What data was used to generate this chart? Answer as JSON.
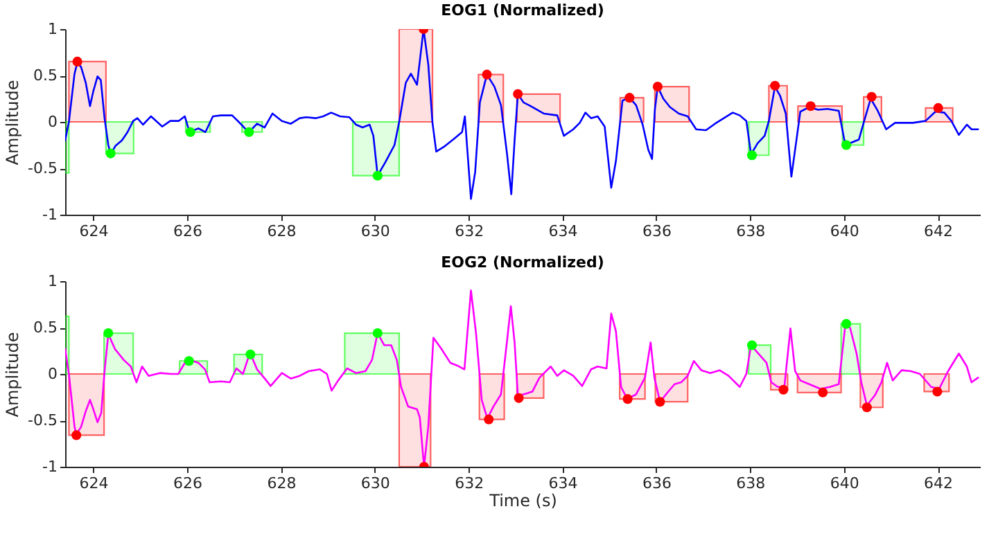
{
  "chart_data": [
    {
      "type": "line",
      "title": "EOG1 (Normalized)",
      "ylabel": "Amplitude",
      "xlim": [
        623.4,
        642.9
      ],
      "xticks": [
        624,
        626,
        628,
        630,
        632,
        634,
        636,
        638,
        640,
        642
      ],
      "ylim": [
        -1,
        1
      ],
      "yticks": [
        -1,
        -0.5,
        0,
        0.5,
        1
      ],
      "grid": false,
      "series": [
        {
          "type": "area",
          "color": "#ff0000",
          "x": [
            623.48,
            624.27
          ],
          "values": [
            0.65,
            0.65
          ]
        },
        {
          "type": "area",
          "color": "#ff0000",
          "x": [
            630.52,
            631.23
          ],
          "values": [
            1,
            1
          ]
        },
        {
          "type": "area",
          "color": "#ff0000",
          "x": [
            632.21,
            632.74
          ],
          "values": [
            0.51,
            0.51
          ]
        },
        {
          "type": "area",
          "color": "#ff0000",
          "x": [
            633.03,
            633.95
          ],
          "values": [
            0.3,
            0.3
          ]
        },
        {
          "type": "area",
          "color": "#ff0000",
          "x": [
            635.23,
            635.73
          ],
          "values": [
            0.26,
            0.26
          ]
        },
        {
          "type": "area",
          "color": "#ff0000",
          "x": [
            635.97,
            636.7
          ],
          "values": [
            0.38,
            0.38
          ]
        },
        {
          "type": "area",
          "color": "#ff0000",
          "x": [
            638.4,
            638.79
          ],
          "values": [
            0.39,
            0.39
          ]
        },
        {
          "type": "area",
          "color": "#ff0000",
          "x": [
            639.02,
            639.96
          ],
          "values": [
            0.17,
            0.17
          ]
        },
        {
          "type": "area",
          "color": "#ff0000",
          "x": [
            640.42,
            640.8
          ],
          "values": [
            0.27,
            0.27
          ]
        },
        {
          "type": "area",
          "color": "#ff0000",
          "x": [
            641.74,
            642.32
          ],
          "values": [
            0.15,
            0.15
          ]
        },
        {
          "type": "area",
          "color": "#00ff00",
          "x": [
            623.4,
            623.48
          ],
          "values": [
            -0.55,
            -0.55
          ]
        },
        {
          "type": "area",
          "color": "#00ff00",
          "x": [
            624.27,
            624.86
          ],
          "values": [
            -0.34,
            -0.34
          ]
        },
        {
          "type": "area",
          "color": "#00ff00",
          "x": [
            625.97,
            626.49
          ],
          "values": [
            -0.11,
            -0.11
          ]
        },
        {
          "type": "area",
          "color": "#00ff00",
          "x": [
            627.17,
            627.6
          ],
          "values": [
            -0.11,
            -0.11
          ]
        },
        {
          "type": "area",
          "color": "#00ff00",
          "x": [
            629.53,
            630.52
          ],
          "values": [
            -0.58,
            -0.58
          ]
        },
        {
          "type": "area",
          "color": "#00ff00",
          "x": [
            637.97,
            638.4
          ],
          "values": [
            -0.36,
            -0.36
          ]
        },
        {
          "type": "area",
          "color": "#00ff00",
          "x": [
            639.97,
            640.42
          ],
          "values": [
            -0.25,
            -0.25
          ]
        },
        {
          "type": "line",
          "color": "#0000ff",
          "x": [
            623.4,
            623.48,
            623.6,
            623.66,
            623.74,
            623.84,
            623.93,
            624.0,
            624.09,
            624.16,
            624.24,
            624.32,
            624.37,
            624.47,
            624.61,
            624.73,
            624.85,
            624.94,
            625.06,
            625.23,
            625.47,
            625.64,
            625.82,
            625.95,
            626.05,
            626.24,
            626.39,
            626.55,
            626.72,
            626.96,
            627.1,
            627.25,
            627.32,
            627.49,
            627.65,
            627.82,
            628.02,
            628.21,
            628.4,
            628.54,
            628.74,
            628.9,
            629.07,
            629.26,
            629.46,
            629.6,
            629.74,
            629.89,
            629.97,
            630.06,
            630.22,
            630.42,
            630.52,
            630.66,
            630.77,
            630.9,
            631.04,
            631.14,
            631.23,
            631.31,
            631.47,
            631.67,
            631.86,
            631.92,
            632.05,
            632.14,
            632.24,
            632.39,
            632.55,
            632.69,
            632.82,
            632.91,
            632.98,
            633.05,
            633.17,
            633.36,
            633.6,
            633.89,
            634.03,
            634.23,
            634.37,
            634.49,
            634.61,
            634.75,
            634.9,
            635.04,
            635.14,
            635.28,
            635.43,
            635.57,
            635.71,
            635.83,
            635.91,
            635.97,
            636.03,
            636.15,
            636.29,
            636.48,
            636.67,
            636.85,
            637.06,
            637.25,
            637.44,
            637.63,
            637.78,
            637.92,
            638.02,
            638.16,
            638.31,
            638.4,
            638.53,
            638.64,
            638.76,
            638.88,
            639.0,
            639.07,
            639.26,
            639.45,
            639.65,
            639.89,
            640.01,
            640.13,
            640.32,
            640.42,
            640.57,
            640.71,
            640.9,
            641.09,
            641.28,
            641.47,
            641.74,
            641.95,
            642.14,
            642.29,
            642.45,
            642.62,
            642.72,
            642.86
          ],
          "values": [
            -0.2,
            0,
            0.52,
            0.64,
            0.59,
            0.42,
            0.17,
            0.33,
            0.49,
            0.45,
            0.04,
            -0.25,
            -0.35,
            -0.26,
            -0.2,
            -0.11,
            0.01,
            0.04,
            -0.03,
            0.06,
            -0.05,
            0.01,
            0.01,
            0.06,
            -0.11,
            -0.07,
            -0.11,
            0.06,
            0.07,
            0.07,
            0,
            -0.08,
            -0.11,
            -0.02,
            -0.06,
            0.09,
            0.01,
            -0.02,
            0.04,
            0.05,
            0.04,
            0.06,
            0.1,
            0.06,
            0.05,
            -0.03,
            -0.06,
            -0.03,
            -0.15,
            -0.58,
            -0.44,
            -0.25,
            0,
            0.42,
            0.52,
            0.4,
            1.0,
            0.62,
            -0.01,
            -0.32,
            -0.27,
            -0.19,
            -0.11,
            0.06,
            -0.83,
            -0.54,
            0.21,
            0.51,
            0.38,
            0.18,
            -0.35,
            -0.78,
            -0.2,
            0.3,
            0.21,
            0.16,
            0.09,
            0.07,
            -0.15,
            -0.08,
            -0.01,
            0.1,
            0.04,
            0.06,
            -0.05,
            -0.71,
            -0.42,
            0.23,
            0.26,
            0.18,
            -0.03,
            -0.3,
            -0.4,
            0.13,
            0.38,
            0.25,
            0.16,
            0.09,
            0.06,
            -0.08,
            -0.09,
            -0.02,
            0.04,
            0.1,
            0.07,
            0.01,
            -0.35,
            -0.23,
            -0.15,
            0.01,
            0.38,
            0.28,
            0.09,
            -0.59,
            -0.15,
            0.11,
            0.16,
            0.13,
            0.14,
            0.12,
            -0.2,
            -0.23,
            -0.19,
            -0.01,
            0.25,
            0.13,
            -0.08,
            -0.01,
            -0.01,
            -0.01,
            0.01,
            0.11,
            0.1,
            0.01,
            -0.14,
            -0.03,
            -0.08,
            -0.08
          ]
        },
        {
          "type": "scatter",
          "color": "#ff0000",
          "x": [
            623.66,
            631.04,
            632.39,
            633.05,
            635.43,
            636.03,
            638.53,
            639.29,
            640.59,
            642.01
          ],
          "values": [
            0.65,
            1,
            0.51,
            0.3,
            0.26,
            0.38,
            0.39,
            0.17,
            0.27,
            0.15
          ]
        },
        {
          "type": "scatter",
          "color": "#00ff00",
          "x": [
            624.37,
            626.07,
            627.32,
            630.06,
            638.04,
            640.05
          ],
          "values": [
            -0.34,
            -0.11,
            -0.11,
            -0.58,
            -0.36,
            -0.25
          ]
        }
      ]
    },
    {
      "type": "line",
      "title": "EOG2 (Normalized)",
      "xlabel": "Time (s)",
      "ylabel": "Amplitude",
      "xlim": [
        623.4,
        642.9
      ],
      "xticks": [
        624,
        626,
        628,
        630,
        632,
        634,
        636,
        638,
        640,
        642
      ],
      "ylim": [
        -1,
        1
      ],
      "yticks": [
        -1,
        -0.5,
        0,
        0.5,
        1
      ],
      "grid": false,
      "series": [
        {
          "type": "area",
          "color": "#00ff00",
          "x": [
            623.4,
            623.48
          ],
          "values": [
            0.62,
            0.62
          ]
        },
        {
          "type": "area",
          "color": "#00ff00",
          "x": [
            624.23,
            624.85
          ],
          "values": [
            0.44,
            0.44
          ]
        },
        {
          "type": "area",
          "color": "#00ff00",
          "x": [
            625.84,
            626.43
          ],
          "values": [
            0.14,
            0.14
          ]
        },
        {
          "type": "area",
          "color": "#00ff00",
          "x": [
            627.0,
            627.6
          ],
          "values": [
            0.21,
            0.21
          ]
        },
        {
          "type": "area",
          "color": "#00ff00",
          "x": [
            629.36,
            630.52
          ],
          "values": [
            0.44,
            0.44
          ]
        },
        {
          "type": "area",
          "color": "#00ff00",
          "x": [
            637.97,
            638.44
          ],
          "values": [
            0.31,
            0.31
          ]
        },
        {
          "type": "area",
          "color": "#00ff00",
          "x": [
            639.94,
            640.35
          ],
          "values": [
            0.54,
            0.54
          ]
        },
        {
          "type": "area",
          "color": "#ff0000",
          "x": [
            623.48,
            624.23
          ],
          "values": [
            -0.66,
            -0.66
          ]
        },
        {
          "type": "area",
          "color": "#ff0000",
          "x": [
            630.52,
            631.19
          ],
          "values": [
            -1,
            -1
          ]
        },
        {
          "type": "area",
          "color": "#ff0000",
          "x": [
            632.23,
            632.76
          ],
          "values": [
            -0.49,
            -0.49
          ]
        },
        {
          "type": "area",
          "color": "#ff0000",
          "x": [
            633.03,
            633.6
          ],
          "values": [
            -0.26,
            -0.26
          ]
        },
        {
          "type": "area",
          "color": "#ff0000",
          "x": [
            635.22,
            635.76
          ],
          "values": [
            -0.27,
            -0.27
          ]
        },
        {
          "type": "area",
          "color": "#ff0000",
          "x": [
            635.98,
            636.67
          ],
          "values": [
            -0.3,
            -0.3
          ]
        },
        {
          "type": "area",
          "color": "#ff0000",
          "x": [
            638.44,
            638.8
          ],
          "values": [
            -0.17,
            -0.17
          ]
        },
        {
          "type": "area",
          "color": "#ff0000",
          "x": [
            639.01,
            639.94
          ],
          "values": [
            -0.2,
            -0.2
          ]
        },
        {
          "type": "area",
          "color": "#ff0000",
          "x": [
            640.35,
            640.83
          ],
          "values": [
            -0.36,
            -0.36
          ]
        },
        {
          "type": "area",
          "color": "#ff0000",
          "x": [
            641.71,
            642.24
          ],
          "values": [
            -0.19,
            -0.19
          ]
        },
        {
          "type": "line",
          "color": "#ff00ff",
          "x": [
            623.4,
            623.48,
            623.6,
            623.64,
            623.74,
            623.84,
            623.93,
            624.0,
            624.09,
            624.17,
            624.24,
            624.32,
            624.46,
            624.65,
            624.8,
            624.92,
            625.04,
            625.18,
            625.42,
            625.66,
            625.81,
            626.0,
            626.24,
            626.38,
            626.48,
            626.72,
            626.91,
            627.05,
            627.19,
            627.34,
            627.49,
            627.64,
            627.78,
            628.02,
            628.21,
            628.4,
            628.59,
            628.83,
            628.98,
            629.08,
            629.22,
            629.41,
            629.6,
            629.8,
            629.94,
            630.06,
            630.2,
            630.35,
            630.47,
            630.56,
            630.71,
            630.9,
            630.96,
            631.05,
            631.14,
            631.25,
            631.42,
            631.61,
            631.76,
            631.91,
            632.05,
            632.16,
            632.28,
            632.4,
            632.53,
            632.69,
            632.82,
            632.9,
            632.98,
            633.05,
            633.17,
            633.36,
            633.51,
            633.75,
            633.89,
            634.03,
            634.23,
            634.42,
            634.61,
            634.75,
            634.94,
            635.04,
            635.14,
            635.25,
            635.38,
            635.57,
            635.76,
            635.88,
            635.96,
            636.08,
            636.24,
            636.39,
            636.53,
            636.67,
            636.8,
            636.96,
            637.15,
            637.35,
            637.54,
            637.78,
            637.92,
            638.02,
            638.21,
            638.35,
            638.45,
            638.59,
            638.73,
            638.86,
            638.96,
            639.07,
            639.26,
            639.5,
            639.7,
            639.89,
            640.03,
            640.13,
            640.27,
            640.37,
            640.49,
            640.66,
            640.8,
            640.92,
            641.04,
            641.23,
            641.43,
            641.62,
            641.86,
            642.03,
            642.22,
            642.45,
            642.62,
            642.72,
            642.86
          ],
          "values": [
            0.27,
            0,
            -0.57,
            -0.65,
            -0.57,
            -0.4,
            -0.28,
            -0.38,
            -0.52,
            -0.42,
            0.03,
            0.43,
            0.27,
            0.15,
            0.08,
            -0.09,
            0.08,
            -0.02,
            0.01,
            0,
            0,
            0.16,
            0.12,
            0.05,
            -0.09,
            -0.08,
            -0.09,
            0.06,
            0,
            0.23,
            0.05,
            -0.04,
            -0.13,
            0.01,
            -0.05,
            -0.02,
            0.03,
            0.05,
            0,
            -0.18,
            -0.07,
            0.06,
            0.01,
            0.03,
            0.15,
            0.44,
            0.31,
            0.31,
            0.15,
            -0.14,
            -0.35,
            -0.38,
            -0.47,
            -1.0,
            -0.57,
            0.39,
            0.27,
            0.12,
            0.09,
            0.05,
            0.9,
            0.43,
            -0.28,
            -0.48,
            -0.35,
            -0.22,
            0.36,
            0.73,
            0.34,
            -0.23,
            -0.22,
            -0.19,
            -0.04,
            0.08,
            -0.02,
            0.04,
            -0.02,
            -0.13,
            0.05,
            0.08,
            0.06,
            0.65,
            0.46,
            -0.14,
            -0.27,
            -0.22,
            -0.04,
            0.34,
            -0.04,
            -0.3,
            -0.2,
            -0.11,
            -0.09,
            -0.02,
            0.14,
            0.04,
            0.01,
            0.04,
            -0.02,
            -0.14,
            0,
            0.31,
            0.2,
            0.12,
            -0.09,
            -0.14,
            -0.14,
            0.49,
            0.03,
            -0.07,
            -0.11,
            -0.16,
            -0.14,
            -0.11,
            0.53,
            0.5,
            0.22,
            -0.09,
            -0.34,
            -0.23,
            -0.09,
            0.12,
            -0.07,
            0.04,
            0.03,
            0,
            -0.14,
            -0.16,
            0.03,
            0.22,
            0.08,
            -0.09,
            -0.04
          ]
        },
        {
          "type": "scatter",
          "color": "#00ff00",
          "x": [
            624.32,
            626.04,
            627.35,
            630.06,
            638.04,
            640.05
          ],
          "values": [
            0.44,
            0.14,
            0.21,
            0.44,
            0.31,
            0.54
          ]
        },
        {
          "type": "scatter",
          "color": "#ff0000",
          "x": [
            623.64,
            631.05,
            632.43,
            633.07,
            635.39,
            636.08,
            638.71,
            639.55,
            640.49,
            641.99
          ],
          "values": [
            -0.66,
            -1,
            -0.49,
            -0.26,
            -0.27,
            -0.3,
            -0.17,
            -0.2,
            -0.36,
            -0.19
          ]
        }
      ]
    }
  ]
}
